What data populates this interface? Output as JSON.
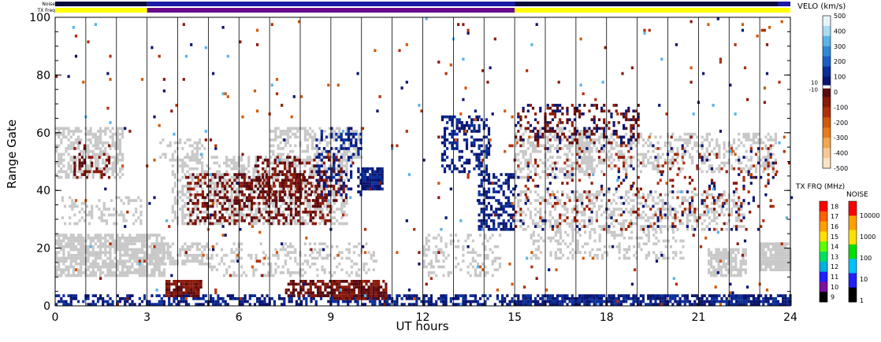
{
  "chart_data": {
    "type": "heatmap",
    "xlabel": "UT hours",
    "ylabel": "Range Gate",
    "xlim": [
      0,
      24
    ],
    "ylim": [
      0,
      100
    ],
    "x_ticks": [
      0,
      3,
      6,
      9,
      12,
      15,
      18,
      21,
      24
    ],
    "y_ticks": [
      0,
      20,
      40,
      60,
      80,
      100
    ],
    "vertical_grid_hours": [
      1,
      2,
      3,
      4,
      5,
      6,
      7,
      8,
      9,
      10,
      11,
      12,
      13,
      14,
      15,
      16,
      17,
      18,
      19,
      20,
      21,
      22,
      23
    ],
    "status_bars": {
      "noise_label": "Noise",
      "txfreq_label": "TX Freq",
      "noise_segments": [
        {
          "from": 0,
          "to": 3,
          "color": "#0a0a3c"
        },
        {
          "from": 3,
          "to": 15,
          "color": "#1a1aa6"
        },
        {
          "from": 15,
          "to": 23.6,
          "color": "#0a0a3c"
        },
        {
          "from": 23.6,
          "to": 24,
          "color": "#1a1aa6"
        }
      ],
      "txfreq_segments": [
        {
          "from": 0,
          "to": 3,
          "color": "#ffff00"
        },
        {
          "from": 3,
          "to": 15,
          "color": "#6a0a8a"
        },
        {
          "from": 15,
          "to": 24,
          "color": "#ffff00"
        }
      ]
    },
    "velocity_scale": {
      "title": "VELO (km/s)",
      "ticks": [
        "500",
        "400",
        "300",
        "200",
        "100",
        "0",
        "-100",
        "-200",
        "-300",
        "-400",
        "-500"
      ],
      "zero_band_labels": [
        "10",
        "-10"
      ],
      "colors": [
        "#e6f3fb",
        "#a8dcf2",
        "#5ab4ea",
        "#2e8ad8",
        "#1a5ec6",
        "#0a2e9a",
        "#0a1470",
        "#5a0a10",
        "#8a1a0a",
        "#b0300a",
        "#d05a0a",
        "#e87a1a",
        "#f4a64a",
        "#f8c890",
        "#fbe2c4"
      ]
    },
    "txfreq_scale": {
      "title": "TX FRQ (MHz)",
      "ticks": [
        "18",
        "17",
        "16",
        "15",
        "14",
        "13",
        "12",
        "11",
        "10",
        "9"
      ],
      "colors": [
        "#ff0000",
        "#ff6000",
        "#ffa000",
        "#ffe000",
        "#60ff00",
        "#00e060",
        "#00b0e0",
        "#2020ff",
        "#7a10a0",
        "#000000"
      ]
    },
    "noise_scale": {
      "title": "NOISE",
      "ticks": [
        "10000",
        "1000",
        "100",
        "10",
        "1"
      ],
      "colors": [
        "#ff0000",
        "#ffa000",
        "#ffe000",
        "#00e000",
        "#00c0ff",
        "#2020ff",
        "#000000"
      ]
    },
    "ground_scatter_color": "#c8c8c8",
    "ground_scatter_regions": [
      {
        "x0": 0.0,
        "x1": 2.2,
        "y0": 44,
        "y1": 62,
        "density": 0.55
      },
      {
        "x0": 0.0,
        "x1": 3.6,
        "y0": 10,
        "y1": 25,
        "density": 0.75
      },
      {
        "x0": 3.0,
        "x1": 5.0,
        "y0": 14,
        "y1": 22,
        "density": 0.55
      },
      {
        "x0": 0.2,
        "x1": 2.8,
        "y0": 28,
        "y1": 38,
        "density": 0.3
      },
      {
        "x0": 3.4,
        "x1": 4.9,
        "y0": 50,
        "y1": 58,
        "density": 0.35
      },
      {
        "x0": 3.8,
        "x1": 9.5,
        "y0": 28,
        "y1": 52,
        "density": 0.45
      },
      {
        "x0": 7.0,
        "x1": 10.0,
        "y0": 50,
        "y1": 62,
        "density": 0.45
      },
      {
        "x0": 5.0,
        "x1": 10.5,
        "y0": 10,
        "y1": 22,
        "density": 0.25
      },
      {
        "x0": 12.0,
        "x1": 14.5,
        "y0": 10,
        "y1": 25,
        "density": 0.3
      },
      {
        "x0": 15.0,
        "x1": 17.5,
        "y0": 44,
        "y1": 62,
        "density": 0.45
      },
      {
        "x0": 17.0,
        "x1": 23.5,
        "y0": 46,
        "y1": 60,
        "density": 0.35
      },
      {
        "x0": 15.0,
        "x1": 22.5,
        "y0": 26,
        "y1": 40,
        "density": 0.35
      },
      {
        "x0": 15.5,
        "x1": 20.5,
        "y0": 16,
        "y1": 26,
        "density": 0.3
      },
      {
        "x0": 21.3,
        "x1": 22.5,
        "y0": 10,
        "y1": 20,
        "density": 0.75
      },
      {
        "x0": 23.0,
        "x1": 24.0,
        "y0": 12,
        "y1": 22,
        "density": 0.9
      }
    ],
    "ionospheric_regions": [
      {
        "x0": 0.0,
        "x1": 15.0,
        "y0": 0,
        "y1": 4,
        "density": 0.55,
        "colors": [
          "#0a1470",
          "#0a2e9a"
        ]
      },
      {
        "x0": 15.0,
        "x1": 24.0,
        "y0": 0,
        "y1": 4,
        "density": 0.8,
        "colors": [
          "#0a1470",
          "#0a2e9a"
        ]
      },
      {
        "x0": 3.6,
        "x1": 4.8,
        "y0": 3,
        "y1": 9,
        "density": 0.9,
        "colors": [
          "#8a1a0a",
          "#5a0a10"
        ]
      },
      {
        "x0": 7.5,
        "x1": 9.0,
        "y0": 3,
        "y1": 9,
        "density": 0.7,
        "colors": [
          "#8a1a0a",
          "#5a0a10"
        ]
      },
      {
        "x0": 9.0,
        "x1": 10.8,
        "y0": 2,
        "y1": 9,
        "density": 0.8,
        "colors": [
          "#8a1a0a",
          "#5a0a10"
        ]
      },
      {
        "x0": 4.3,
        "x1": 9.0,
        "y0": 28,
        "y1": 46,
        "density": 0.35,
        "colors": [
          "#8a1a0a",
          "#5a0a10"
        ]
      },
      {
        "x0": 6.5,
        "x1": 9.5,
        "y0": 36,
        "y1": 52,
        "density": 0.35,
        "colors": [
          "#8a1a0a",
          "#5a0a10"
        ]
      },
      {
        "x0": 10.0,
        "x1": 10.7,
        "y0": 40,
        "y1": 48,
        "density": 0.95,
        "colors": [
          "#0a1470",
          "#0a2e9a"
        ]
      },
      {
        "x0": 8.5,
        "x1": 10.0,
        "y0": 38,
        "y1": 62,
        "density": 0.3,
        "colors": [
          "#0a1470",
          "#0a2e9a"
        ]
      },
      {
        "x0": 0.6,
        "x1": 1.8,
        "y0": 44,
        "y1": 58,
        "density": 0.2,
        "colors": [
          "#8a1a0a",
          "#5a0a10"
        ]
      },
      {
        "x0": 13.8,
        "x1": 15.0,
        "y0": 26,
        "y1": 46,
        "density": 0.55,
        "colors": [
          "#0a1470",
          "#0a2e9a"
        ]
      },
      {
        "x0": 12.6,
        "x1": 14.2,
        "y0": 46,
        "y1": 66,
        "density": 0.45,
        "colors": [
          "#0a1470",
          "#0a2e9a"
        ]
      },
      {
        "x0": 15.0,
        "x1": 19.0,
        "y0": 56,
        "y1": 70,
        "density": 0.3,
        "colors": [
          "#8a1a0a",
          "#5a0a10",
          "#0a1470"
        ]
      },
      {
        "x0": 15.0,
        "x1": 23.5,
        "y0": 26,
        "y1": 56,
        "density": 0.1,
        "colors": [
          "#8a1a0a",
          "#0a1470",
          "#b0300a"
        ]
      },
      {
        "x0": 0.0,
        "x1": 24.0,
        "y0": 0,
        "y1": 100,
        "density": 0.012,
        "colors": [
          "#8a1a0a",
          "#0a1470",
          "#5ab4ea",
          "#d05a0a",
          "#b0300a"
        ]
      }
    ]
  }
}
